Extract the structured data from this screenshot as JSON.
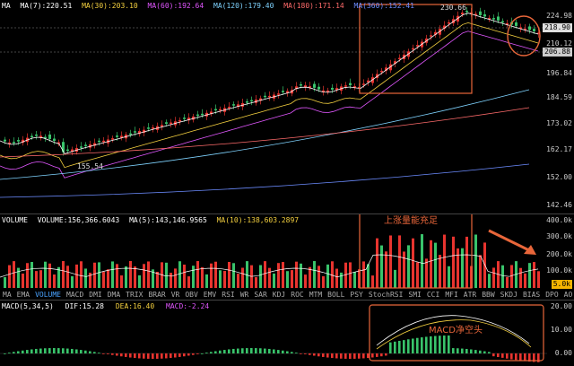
{
  "main": {
    "legend_prefix": "MA",
    "ma": [
      {
        "label": "MA(7):220.51",
        "color": "#ffffff"
      },
      {
        "label": "MA(30):203.10",
        "color": "#f4d03f"
      },
      {
        "label": "MA(60):192.64",
        "color": "#e056fd"
      },
      {
        "label": "MA(120):179.40",
        "color": "#7fd3ff"
      },
      {
        "label": "MA(180):171.14",
        "color": "#ff6b6b"
      },
      {
        "label": "MA(360):152.41",
        "color": "#6c8cff"
      }
    ],
    "price_high_label": "230.66",
    "price_low_label": "155.54",
    "axis_ticks": [
      "224.98",
      "218.90",
      "210.12",
      "206.88",
      "196.84",
      "184.59",
      "173.02",
      "162.17",
      "152.00",
      "142.46"
    ],
    "current_price": "218.90",
    "ref_price": "206.88"
  },
  "volume": {
    "title": "VOLUME",
    "labels": [
      "VOLUME:156,366.6043",
      "MA(5):143,146.9565",
      "MA(10):138,603.2897"
    ],
    "annotation": "上涨量能充足",
    "axis_ticks": [
      "400.0k",
      "300.0k",
      "200.0k",
      "100.0k"
    ],
    "current": "5.0k"
  },
  "tabs": [
    "MA",
    "EMA",
    "VOLUME",
    "MACD",
    "DMI",
    "DMA",
    "TRIX",
    "BRAR",
    "VR",
    "OBV",
    "EMV",
    "RSI",
    "WR",
    "SAR",
    "KDJ",
    "ROC",
    "MTM",
    "BOLL",
    "PSY",
    "StochRSI",
    "SMI",
    "CCI",
    "MFI",
    "ATR",
    "BBW",
    "SKDJ",
    "BIAS",
    "DPO",
    "AO"
  ],
  "active_tab": "VOLUME",
  "macd": {
    "title": "MACD(5,34,5)",
    "dif": "DIF:15.28",
    "dea": "DEA:16.40",
    "macd": "MACD:-2.24",
    "annotation": "MACD净空头",
    "axis_ticks": [
      "20.00",
      "10.00",
      "0.00"
    ]
  },
  "colors": {
    "up": "#e8342f",
    "down": "#39c46b",
    "annotation": "#e8663a"
  }
}
